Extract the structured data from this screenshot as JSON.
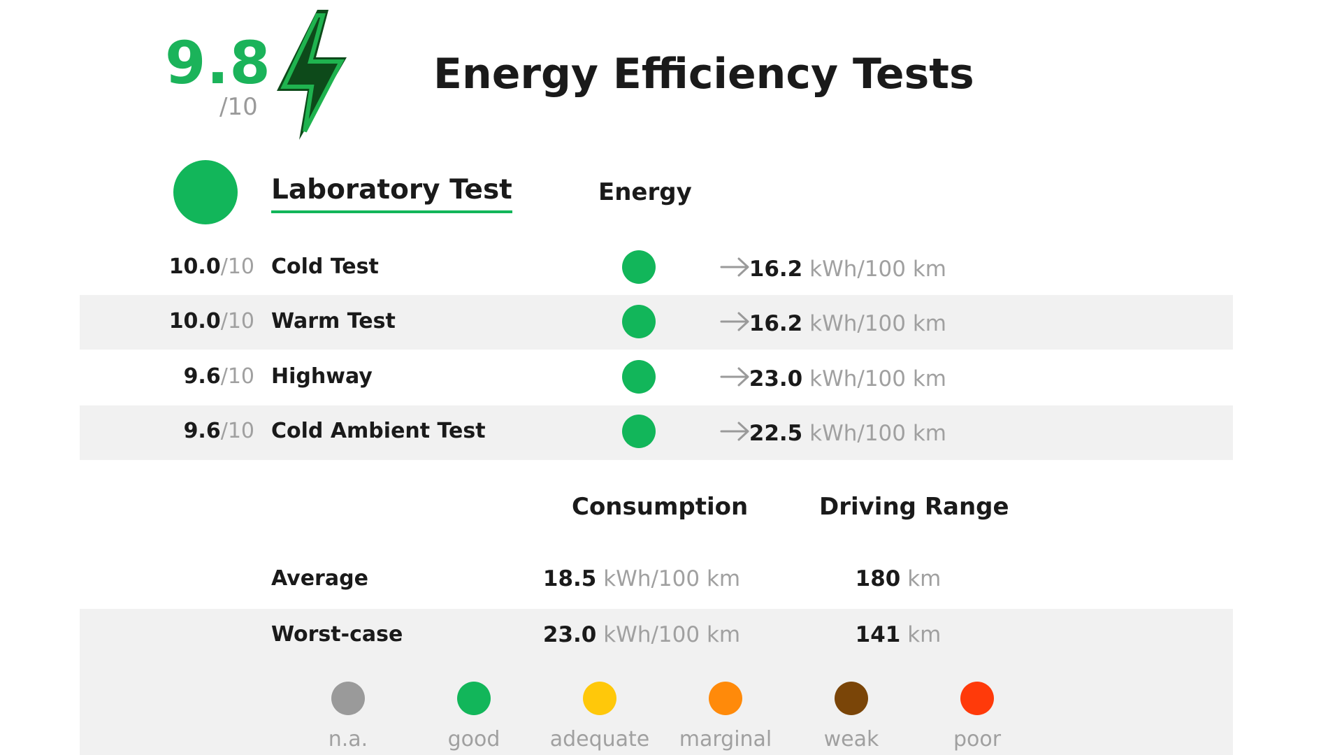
{
  "header": {
    "score": "9.8",
    "score_out_of": "/10",
    "title": "Energy Efficiency Tests",
    "bolt_icon": "lightning-bolt-icon",
    "colors": {
      "accent": "#1bb35a",
      "bolt_dark": "#0d4a1a",
      "bolt_green": "#1fb34f"
    }
  },
  "section": {
    "title": "Laboratory Test",
    "column_head": "Energy",
    "status_color": "#12b65a"
  },
  "tests": [
    {
      "score": "10.0",
      "out_of": "/10",
      "label": "Cold Test",
      "status": "good",
      "value": "16.2",
      "unit": "kWh/100 km"
    },
    {
      "score": "10.0",
      "out_of": "/10",
      "label": "Warm Test",
      "status": "good",
      "value": "16.2",
      "unit": "kWh/100 km"
    },
    {
      "score": "9.6",
      "out_of": "/10",
      "label": "Highway",
      "status": "good",
      "value": "23.0",
      "unit": "kWh/100 km"
    },
    {
      "score": "9.6",
      "out_of": "/10",
      "label": "Cold Ambient Test",
      "status": "good",
      "value": "22.5",
      "unit": "kWh/100 km"
    }
  ],
  "summary": {
    "consumption_head": "Consumption",
    "range_head": "Driving Range",
    "rows": [
      {
        "label": "Average",
        "consumption": "18.5",
        "consumption_unit": "kWh/100 km",
        "range": "180",
        "range_unit": "km"
      },
      {
        "label": "Worst-case",
        "consumption": "23.0",
        "consumption_unit": "kWh/100 km",
        "range": "141",
        "range_unit": "km"
      }
    ]
  },
  "legend": [
    {
      "label": "n.a.",
      "color": "#9a9a9a"
    },
    {
      "label": "good",
      "color": "#12b65a"
    },
    {
      "label": "adequate",
      "color": "#ffc80a"
    },
    {
      "label": "marginal",
      "color": "#ff8a0a"
    },
    {
      "label": "weak",
      "color": "#7a4508"
    },
    {
      "label": "poor",
      "color": "#ff3a0a"
    }
  ]
}
